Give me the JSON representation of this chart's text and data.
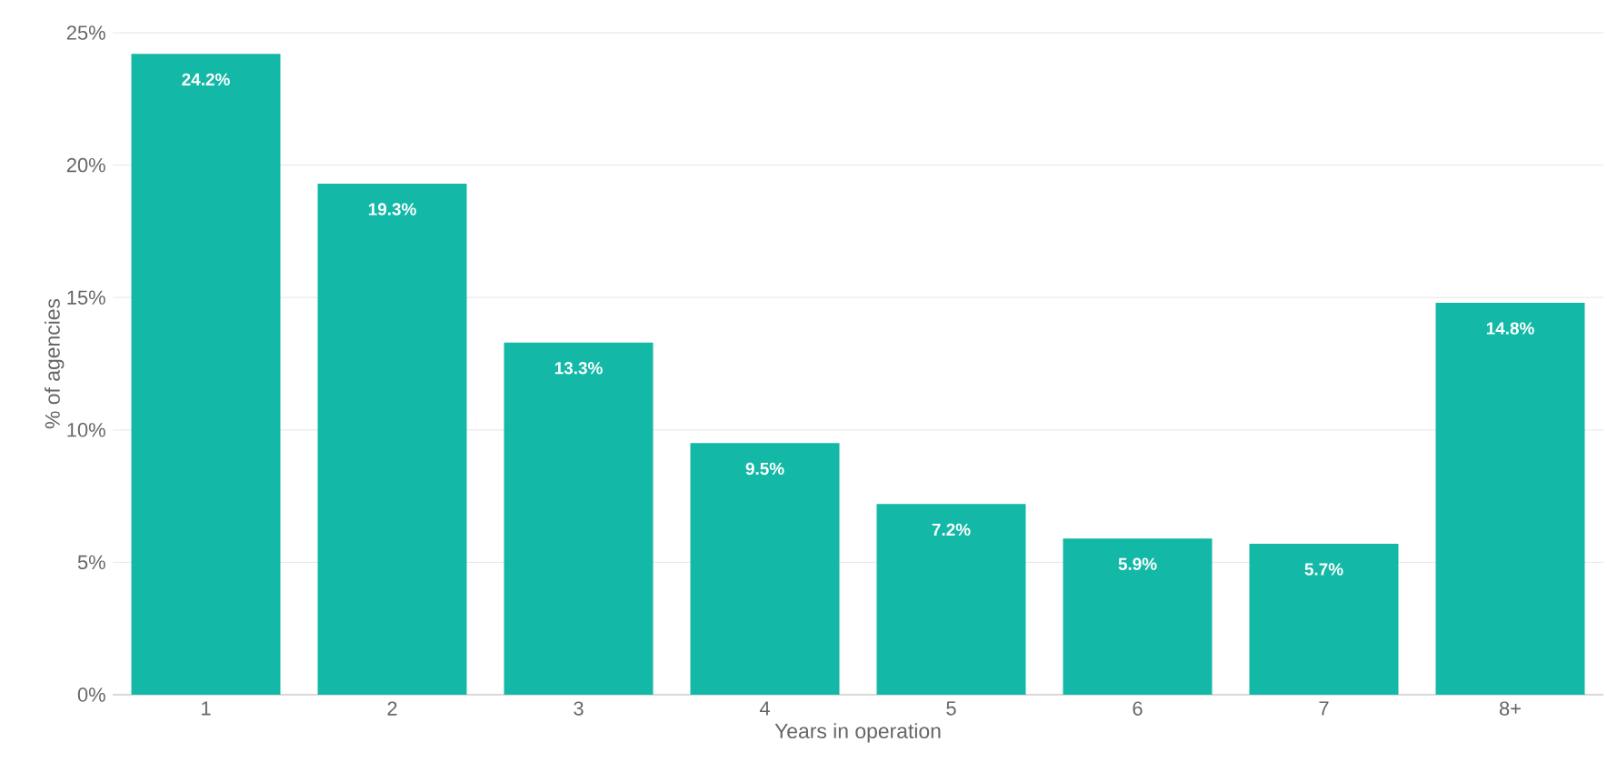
{
  "chart_data": {
    "type": "bar",
    "xlabel": "Years in operation",
    "ylabel": "% of agencies",
    "categories": [
      "1",
      "2",
      "3",
      "4",
      "5",
      "6",
      "7",
      "8+"
    ],
    "values": [
      24.2,
      19.3,
      13.3,
      9.5,
      7.2,
      5.9,
      5.7,
      14.8
    ],
    "value_labels": [
      "24.2%",
      "19.3%",
      "13.3%",
      "9.5%",
      "7.2%",
      "5.9%",
      "5.7%",
      "14.8%"
    ],
    "color": "#14b8a6",
    "ylim": [
      0,
      25
    ],
    "yticks": [
      {
        "value": 0,
        "label": "0%"
      },
      {
        "value": 5,
        "label": "5%"
      },
      {
        "value": 10,
        "label": "10%"
      },
      {
        "value": 15,
        "label": "15%"
      },
      {
        "value": 20,
        "label": "20%"
      },
      {
        "value": 25,
        "label": "25%"
      }
    ],
    "grid": "y"
  }
}
